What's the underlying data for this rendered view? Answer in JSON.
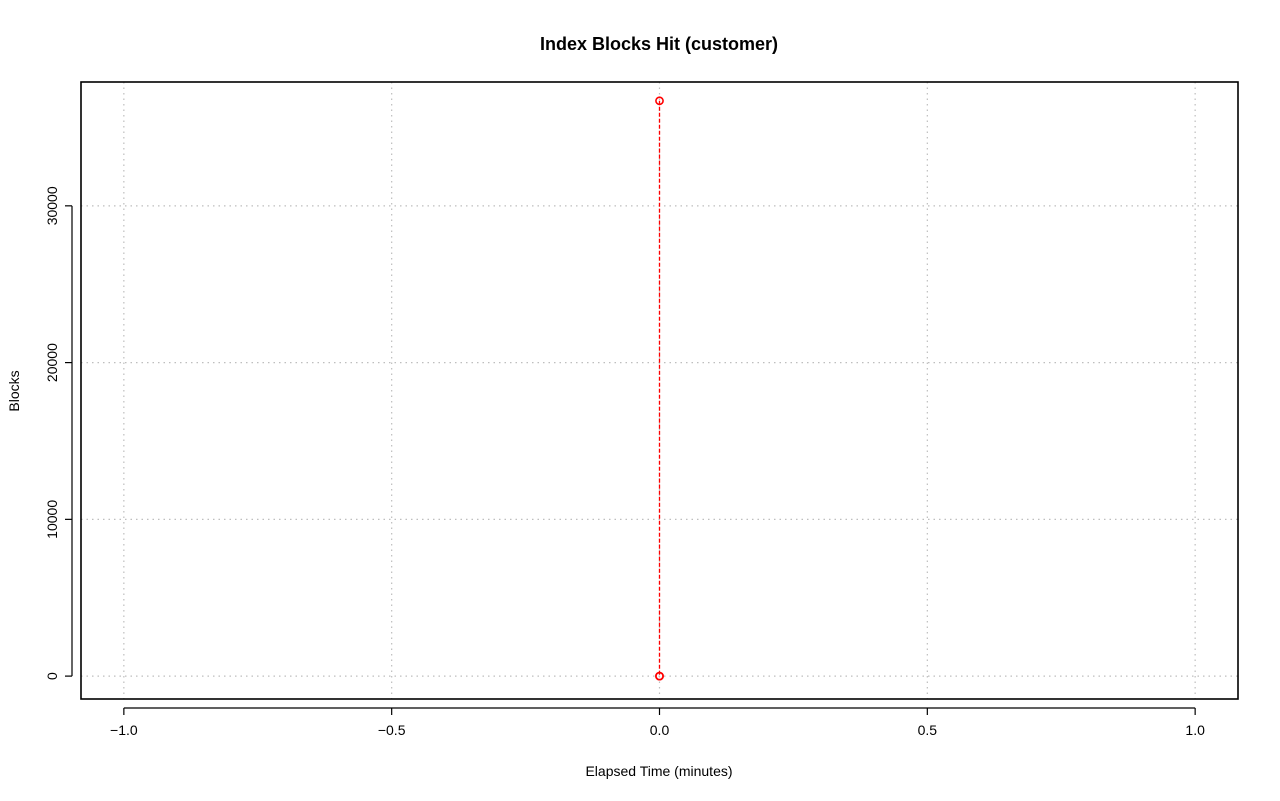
{
  "chart_data": {
    "type": "line",
    "title": "Index Blocks Hit (customer)",
    "xlabel": "Elapsed Time (minutes)",
    "ylabel": "Blocks",
    "xlim": [
      -1.08,
      1.08
    ],
    "ylim": [
      -1460,
      37900
    ],
    "x_ticks": [
      -1.0,
      -0.5,
      0.0,
      0.5,
      1.0
    ],
    "x_tick_labels": [
      "−1.0",
      "−0.5",
      "0.0",
      "0.5",
      "1.0"
    ],
    "y_ticks": [
      0,
      10000,
      20000,
      30000
    ],
    "y_tick_labels": [
      "0",
      "10000",
      "20000",
      "30000"
    ],
    "grid": true,
    "series": [
      {
        "color": "#ff0000",
        "line_style": "dashed",
        "marker": "open-circle",
        "x": [
          0.0,
          0.0,
          0.0
        ],
        "y": [
          36700,
          0,
          0
        ]
      }
    ]
  }
}
